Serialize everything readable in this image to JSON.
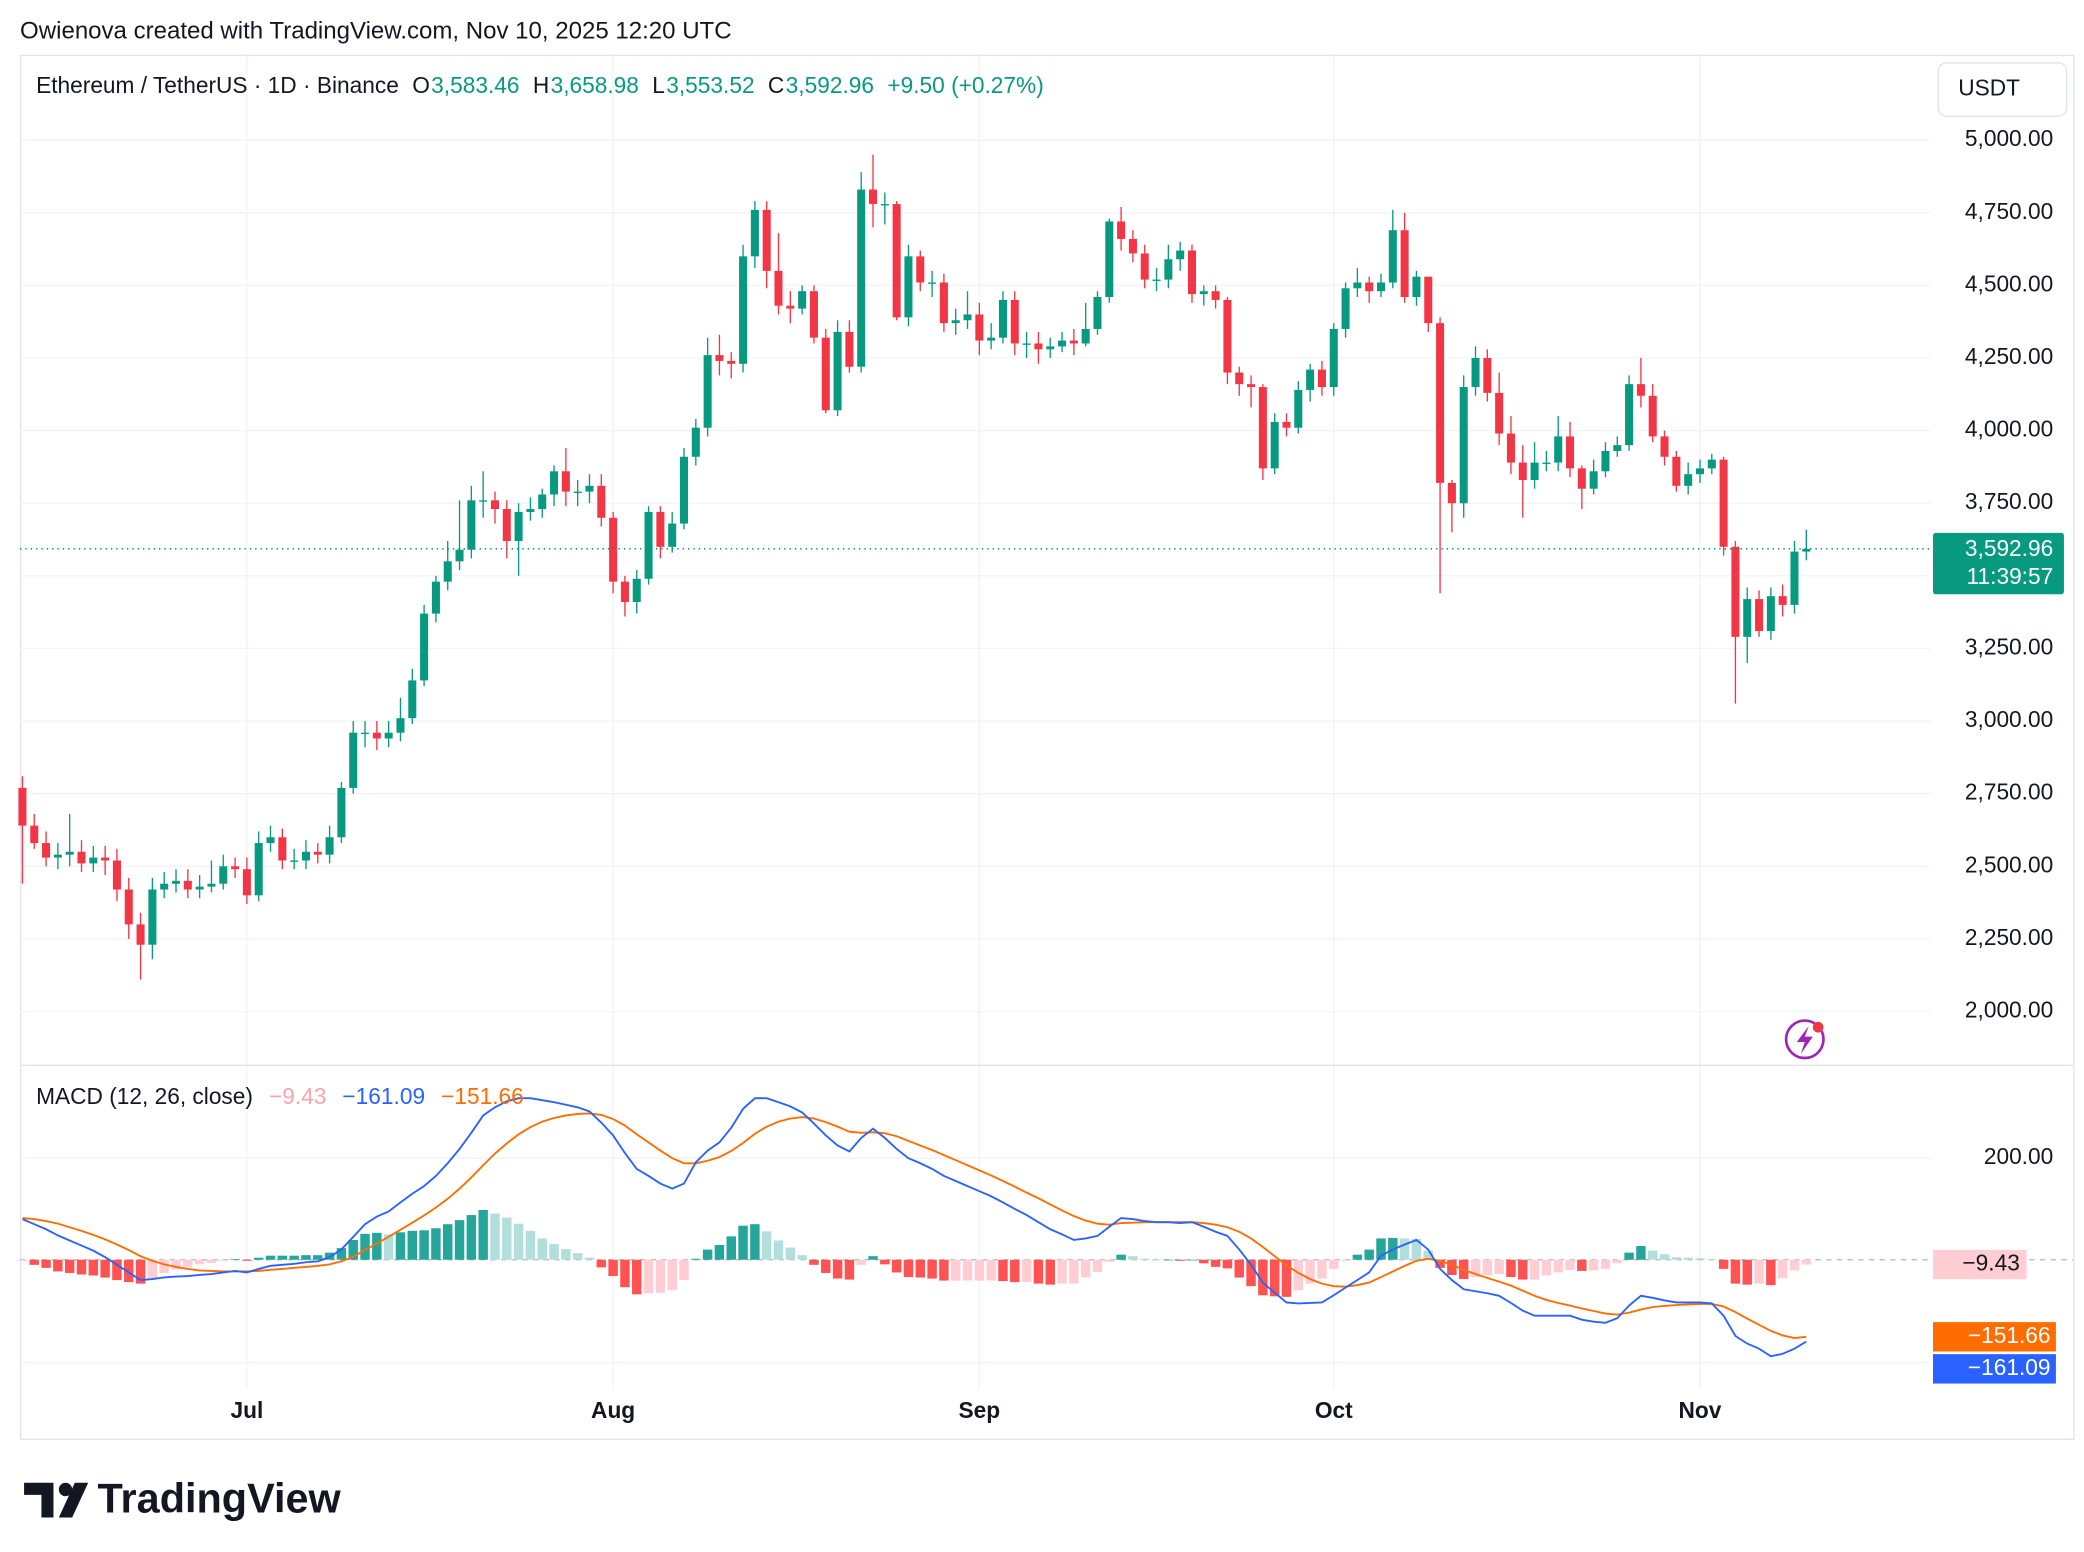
{
  "header": "Owienova created with TradingView.com, Nov 10, 2025 12:20 UTC",
  "brand": "TradingView",
  "chart_data": [
    {
      "type": "candlestick",
      "title": "Ethereum / TetherUS · 1D · Binance",
      "ohlc_legend": [
        {
          "key": "O",
          "value": "3,583.46"
        },
        {
          "key": "H",
          "value": "3,658.98"
        },
        {
          "key": "L",
          "value": "3,553.52"
        },
        {
          "key": "C",
          "value": "3,592.96"
        }
      ],
      "change": "+9.50 (+0.27%)",
      "currency": "USDT",
      "last_price_label": "3,592.96",
      "countdown": "11:39:57",
      "up_color": "#089981",
      "down_color": "#f23645",
      "xlim": [
        -0.2,
        161.5
      ],
      "xticks": [
        {
          "value": 19,
          "label": "Jul"
        },
        {
          "value": 50,
          "label": "Aug"
        },
        {
          "value": 81,
          "label": "Sep"
        },
        {
          "value": 111,
          "label": "Oct"
        },
        {
          "value": 142,
          "label": "Nov"
        }
      ],
      "ylim": [
        1817,
        5294
      ],
      "yticks": [
        {
          "value": 2000,
          "label": "2,000.00"
        },
        {
          "value": 2250,
          "label": "2,250.00"
        },
        {
          "value": 2500,
          "label": "2,500.00"
        },
        {
          "value": 2750,
          "label": "2,750.00"
        },
        {
          "value": 3000,
          "label": "3,000.00"
        },
        {
          "value": 3250,
          "label": "3,250.00"
        },
        {
          "value": 3500,
          "label": "3,500.00"
        },
        {
          "value": 3750,
          "label": "3,750.00"
        },
        {
          "value": 4000,
          "label": "4,000.00"
        },
        {
          "value": 4250,
          "label": "4,250.00"
        },
        {
          "value": 4500,
          "label": "4,500.00"
        },
        {
          "value": 4750,
          "label": "4,750.00"
        },
        {
          "value": 5000,
          "label": "5,000.00"
        }
      ],
      "grid": true,
      "open": [
        2770,
        2640,
        2580,
        2530,
        2540,
        2550,
        2510,
        2530,
        2520,
        2420,
        2300,
        2230,
        2420,
        2440,
        2450,
        2420,
        2430,
        2440,
        2500,
        2490,
        2400,
        2580,
        2600,
        2520,
        2520,
        2550,
        2540,
        2600,
        2770,
        2960,
        2960,
        2940,
        2960,
        3010,
        3140,
        3370,
        3480,
        3550,
        3590,
        3760,
        3760,
        3730,
        3620,
        3720,
        3730,
        3780,
        3860,
        3790,
        3790,
        3810,
        3700,
        3480,
        3410,
        3490,
        3720,
        3600,
        3680,
        3910,
        4010,
        4260,
        4240,
        4230,
        4600,
        4760,
        4550,
        4430,
        4420,
        4480,
        4320,
        4070,
        4340,
        4220,
        4830,
        4780,
        4780,
        4390,
        4600,
        4510,
        4510,
        4370,
        4380,
        4400,
        4310,
        4320,
        4450,
        4300,
        4300,
        4280,
        4290,
        4310,
        4300,
        4350,
        4460,
        4720,
        4660,
        4610,
        4520,
        4520,
        4590,
        4620,
        4470,
        4480,
        4450,
        4200,
        4160,
        4150,
        3870,
        4030,
        4010,
        4140,
        4210,
        4150,
        4350,
        4490,
        4510,
        4480,
        4510,
        4690,
        4460,
        4530,
        4370,
        3820,
        3750,
        4150,
        4250,
        4130,
        3990,
        3890,
        3830,
        3890,
        3890,
        3980,
        3870,
        3800,
        3860,
        3930,
        3950,
        4160,
        4120,
        3980,
        3910,
        3810,
        3850,
        3870,
        3900,
        3600,
        3290,
        3420,
        3310,
        3430,
        3400,
        3583.46
      ],
      "high": [
        2810,
        2680,
        2620,
        2580,
        2680,
        2590,
        2570,
        2570,
        2560,
        2460,
        2340,
        2460,
        2480,
        2490,
        2490,
        2470,
        2520,
        2540,
        2530,
        2530,
        2620,
        2640,
        2630,
        2560,
        2590,
        2580,
        2640,
        2790,
        3000,
        3000,
        3000,
        3000,
        3080,
        3180,
        3400,
        3500,
        3620,
        3760,
        3810,
        3860,
        3790,
        3760,
        3750,
        3770,
        3800,
        3880,
        3940,
        3830,
        3850,
        3850,
        3720,
        3500,
        3520,
        3740,
        3740,
        3720,
        3940,
        4040,
        4320,
        4330,
        4270,
        4640,
        4790,
        4790,
        4680,
        4480,
        4500,
        4500,
        4350,
        4380,
        4380,
        4890,
        4950,
        4820,
        4790,
        4640,
        4620,
        4550,
        4540,
        4420,
        4480,
        4440,
        4370,
        4480,
        4480,
        4340,
        4340,
        4320,
        4340,
        4350,
        4440,
        4480,
        4730,
        4770,
        4690,
        4640,
        4560,
        4640,
        4650,
        4640,
        4500,
        4500,
        4460,
        4220,
        4190,
        4160,
        4060,
        4060,
        4170,
        4230,
        4240,
        4370,
        4510,
        4560,
        4530,
        4540,
        4760,
        4750,
        4550,
        4530,
        4390,
        3830,
        4190,
        4290,
        4280,
        4200,
        4050,
        3950,
        3960,
        3930,
        4050,
        4030,
        3880,
        3900,
        3960,
        3980,
        4190,
        4250,
        4160,
        4000,
        3930,
        3890,
        3900,
        3920,
        3910,
        3620,
        3460,
        3450,
        3460,
        3470,
        3620,
        3658.98
      ],
      "low": [
        2440,
        2560,
        2500,
        2490,
        2500,
        2480,
        2480,
        2470,
        2380,
        2250,
        2110,
        2180,
        2390,
        2410,
        2390,
        2390,
        2410,
        2420,
        2460,
        2370,
        2380,
        2550,
        2490,
        2490,
        2490,
        2510,
        2510,
        2580,
        2750,
        2910,
        2900,
        2910,
        2930,
        2990,
        3120,
        3340,
        3450,
        3520,
        3560,
        3700,
        3680,
        3560,
        3500,
        3690,
        3700,
        3740,
        3740,
        3740,
        3750,
        3670,
        3440,
        3360,
        3370,
        3470,
        3560,
        3580,
        3660,
        3880,
        3980,
        4190,
        4180,
        4200,
        4560,
        4490,
        4400,
        4370,
        4400,
        4300,
        4060,
        4050,
        4200,
        4200,
        4700,
        4710,
        4380,
        4360,
        4480,
        4460,
        4340,
        4330,
        4350,
        4260,
        4280,
        4300,
        4260,
        4250,
        4230,
        4250,
        4270,
        4260,
        4290,
        4330,
        4440,
        4620,
        4580,
        4490,
        4480,
        4490,
        4550,
        4440,
        4430,
        4420,
        4160,
        4120,
        4080,
        3830,
        3850,
        3980,
        3990,
        4100,
        4120,
        4120,
        4320,
        4460,
        4440,
        4460,
        4490,
        4440,
        4430,
        4340,
        3440,
        3650,
        3700,
        4120,
        4100,
        3950,
        3850,
        3700,
        3800,
        3860,
        3860,
        3840,
        3730,
        3780,
        3840,
        3910,
        3930,
        4080,
        3960,
        3880,
        3790,
        3780,
        3820,
        3850,
        3570,
        3060,
        3200,
        3290,
        3280,
        3360,
        3370,
        3553.52
      ],
      "close": [
        2640,
        2580,
        2530,
        2540,
        2550,
        2510,
        2530,
        2520,
        2420,
        2300,
        2230,
        2420,
        2440,
        2450,
        2420,
        2430,
        2440,
        2500,
        2490,
        2400,
        2580,
        2600,
        2520,
        2520,
        2550,
        2540,
        2600,
        2770,
        2960,
        2960,
        2940,
        2960,
        3010,
        3140,
        3370,
        3480,
        3550,
        3590,
        3760,
        3760,
        3730,
        3620,
        3720,
        3730,
        3780,
        3860,
        3790,
        3790,
        3810,
        3700,
        3480,
        3410,
        3490,
        3720,
        3600,
        3680,
        3910,
        4010,
        4260,
        4240,
        4230,
        4600,
        4760,
        4550,
        4430,
        4420,
        4480,
        4320,
        4070,
        4340,
        4220,
        4830,
        4780,
        4780,
        4390,
        4600,
        4510,
        4510,
        4370,
        4380,
        4400,
        4310,
        4320,
        4450,
        4300,
        4300,
        4280,
        4290,
        4310,
        4300,
        4350,
        4460,
        4720,
        4660,
        4610,
        4520,
        4520,
        4590,
        4620,
        4470,
        4480,
        4450,
        4200,
        4160,
        4150,
        3870,
        4030,
        4010,
        4140,
        4210,
        4150,
        4350,
        4490,
        4510,
        4480,
        4510,
        4690,
        4460,
        4530,
        4370,
        3820,
        3750,
        4150,
        4250,
        4130,
        3990,
        3890,
        3830,
        3890,
        3890,
        3980,
        3870,
        3800,
        3860,
        3930,
        3950,
        4160,
        4120,
        3980,
        3910,
        3810,
        3850,
        3870,
        3900,
        3600,
        3290,
        3420,
        3310,
        3430,
        3400,
        3583.46,
        3592.96
      ]
    },
    {
      "type": "macd",
      "title": "MACD (12, 26, close)",
      "xlim": [
        -0.2,
        161.5
      ],
      "ylim": [
        -255,
        384
      ],
      "yticks": [
        {
          "value": 200,
          "label": "200.00"
        }
      ],
      "histogram": {
        "value_label": "−9.43",
        "label_color": "#f7a6ad",
        "colors": [
          "#26a69a",
          "#b2dfdb",
          "#ffcdd2",
          "#ff5252"
        ],
        "values": [
          -2,
          -10,
          -16,
          -23,
          -26,
          -29,
          -31,
          -35,
          -40,
          -44,
          -47,
          -36,
          -26,
          -19,
          -14,
          -9,
          -6,
          -2,
          1,
          -2,
          4,
          8,
          8,
          8,
          9,
          9,
          14,
          23,
          39,
          51,
          53,
          50,
          54,
          57,
          58,
          62,
          70,
          78,
          88,
          98,
          91,
          83,
          71,
          57,
          42,
          31,
          21,
          13,
          4,
          -15,
          -32,
          -54,
          -68,
          -66,
          -65,
          -60,
          -40,
          2,
          20,
          29,
          46,
          67,
          70,
          56,
          38,
          24,
          9,
          -10,
          -26,
          -37,
          -39,
          -10,
          7,
          -9,
          -25,
          -34,
          -35,
          -37,
          -41,
          -41,
          -41,
          -41,
          -41,
          -42,
          -44,
          -44,
          -47,
          -49,
          -47,
          -47,
          -35,
          -24,
          -4,
          10,
          7,
          2,
          0,
          0,
          -2,
          0,
          -7,
          -14,
          -17,
          -35,
          -52,
          -70,
          -72,
          -73,
          -60,
          -47,
          -37,
          -18,
          -2,
          10,
          20,
          42,
          43,
          42,
          41,
          18,
          -16,
          -30,
          -38,
          -34,
          -30,
          -28,
          -34,
          -39,
          -39,
          -31,
          -25,
          -20,
          -22,
          -21,
          -18,
          -7,
          14,
          27,
          18,
          11,
          5,
          4,
          3,
          1,
          -18,
          -47,
          -49,
          -47,
          -50,
          -36,
          -21,
          -9.43
        ]
      },
      "macd": {
        "value_label": "−161.09",
        "color": "#2962ff",
        "values": [
          80,
          70,
          60,
          48,
          38,
          28,
          18,
          5,
          -10,
          -25,
          -40,
          -38,
          -35,
          -33,
          -32,
          -30,
          -28,
          -25,
          -22,
          -25,
          -18,
          -12,
          -10,
          -8,
          -5,
          -3,
          5,
          20,
          45,
          70,
          85,
          95,
          113,
          130,
          145,
          165,
          190,
          218,
          250,
          284,
          300,
          312,
          318,
          318,
          314,
          310,
          305,
          300,
          292,
          270,
          245,
          210,
          179,
          165,
          150,
          140,
          150,
          192,
          215,
          231,
          260,
          297,
          318,
          318,
          310,
          302,
          290,
          268,
          245,
          225,
          213,
          240,
          258,
          240,
          218,
          200,
          190,
          179,
          165,
          155,
          145,
          135,
          125,
          113,
          100,
          88,
          74,
          60,
          50,
          39,
          42,
          47,
          65,
          82,
          80,
          76,
          74,
          74,
          72,
          74,
          65,
          55,
          47,
          20,
          -10,
          -45,
          -65,
          -84,
          -86,
          -85,
          -84,
          -70,
          -55,
          -40,
          -25,
          8,
          20,
          30,
          39,
          20,
          -18,
          -40,
          -58,
          -62,
          -66,
          -71,
          -85,
          -100,
          -110,
          -110,
          -110,
          -110,
          -118,
          -122,
          -124,
          -115,
          -90,
          -71,
          -75,
          -80,
          -84,
          -84,
          -84,
          -86,
          -110,
          -150,
          -165,
          -175,
          -190,
          -185,
          -175,
          -161.09
        ]
      },
      "signal": {
        "value_label": "−151.66",
        "color": "#ff6d00",
        "values": [
          82,
          80,
          76,
          71,
          64,
          57,
          49,
          40,
          30,
          19,
          7,
          -2,
          -9,
          -14,
          -18,
          -21,
          -22,
          -23,
          -23,
          -23,
          -22,
          -20,
          -18,
          -16,
          -14,
          -12,
          -9,
          -3,
          6,
          19,
          32,
          45,
          59,
          73,
          87,
          103,
          120,
          140,
          162,
          186,
          209,
          229,
          247,
          261,
          272,
          279,
          284,
          287,
          288,
          285,
          277,
          264,
          247,
          231,
          215,
          200,
          190,
          190,
          195,
          202,
          214,
          230,
          248,
          262,
          272,
          278,
          281,
          278,
          271,
          262,
          252,
          250,
          251,
          249,
          243,
          234,
          225,
          216,
          206,
          196,
          186,
          176,
          166,
          155,
          144,
          132,
          121,
          109,
          97,
          86,
          77,
          71,
          69,
          72,
          73,
          74,
          74,
          74,
          74,
          74,
          72,
          69,
          64,
          55,
          42,
          25,
          7,
          -11,
          -26,
          -38,
          -47,
          -52,
          -53,
          -50,
          -45,
          -34,
          -23,
          -12,
          -2,
          2,
          -2,
          -10,
          -20,
          -28,
          -36,
          -43,
          -51,
          -61,
          -71,
          -79,
          -85,
          -90,
          -96,
          -101,
          -106,
          -108,
          -104,
          -98,
          -93,
          -91,
          -89,
          -88,
          -87,
          -87,
          -92,
          -103,
          -116,
          -128,
          -140,
          -149,
          -154,
          -151.66
        ]
      }
    }
  ]
}
